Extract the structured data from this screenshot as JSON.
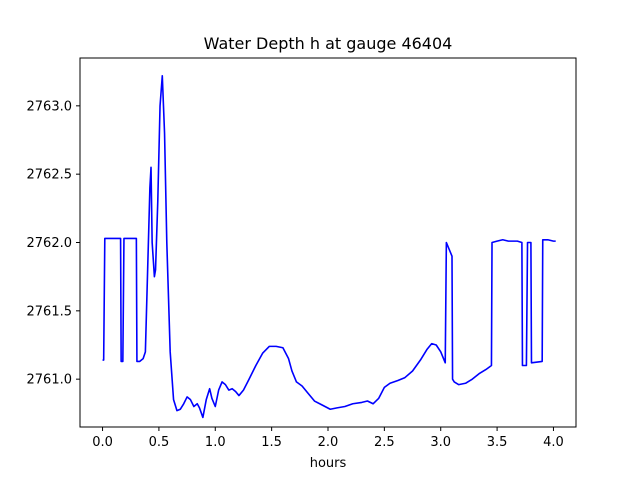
{
  "chart_data": {
    "type": "line",
    "title": "Water Depth h at gauge 46404",
    "xlabel": "hours",
    "ylabel": "",
    "xlim": [
      -0.2,
      4.2
    ],
    "ylim": [
      2760.65,
      2763.35
    ],
    "xticks": [
      0.0,
      0.5,
      1.0,
      1.5,
      2.0,
      2.5,
      3.0,
      3.5,
      4.0
    ],
    "xtick_labels": [
      "0.0",
      "0.5",
      "1.0",
      "1.5",
      "2.0",
      "2.5",
      "3.0",
      "3.5",
      "4.0"
    ],
    "yticks": [
      2761.0,
      2761.5,
      2762.0,
      2762.5,
      2763.0
    ],
    "ytick_labels": [
      "2761.0",
      "2761.5",
      "2762.0",
      "2762.5",
      "2763.0"
    ],
    "grid": false,
    "legend": "none",
    "series": [
      {
        "color": "#0000ff",
        "x": [
          0.0,
          0.01,
          0.02,
          0.1,
          0.16,
          0.165,
          0.18,
          0.19,
          0.2,
          0.3,
          0.305,
          0.33,
          0.36,
          0.38,
          0.4,
          0.42,
          0.43,
          0.44,
          0.46,
          0.47,
          0.49,
          0.51,
          0.53,
          0.55,
          0.57,
          0.6,
          0.63,
          0.66,
          0.69,
          0.72,
          0.75,
          0.78,
          0.81,
          0.84,
          0.86,
          0.89,
          0.92,
          0.95,
          0.97,
          1.0,
          1.03,
          1.06,
          1.09,
          1.12,
          1.15,
          1.18,
          1.21,
          1.25,
          1.3,
          1.36,
          1.42,
          1.48,
          1.54,
          1.6,
          1.65,
          1.68,
          1.72,
          1.77,
          1.82,
          1.88,
          1.95,
          2.02,
          2.08,
          2.15,
          2.22,
          2.3,
          2.35,
          2.4,
          2.45,
          2.5,
          2.55,
          2.62,
          2.68,
          2.75,
          2.82,
          2.88,
          2.92,
          2.96,
          3.0,
          3.04,
          3.05,
          3.1,
          3.105,
          3.12,
          3.16,
          3.22,
          3.28,
          3.34,
          3.4,
          3.45,
          3.455,
          3.5,
          3.55,
          3.6,
          3.68,
          3.72,
          3.725,
          3.76,
          3.77,
          3.8,
          3.805,
          3.9,
          3.905,
          3.95,
          4.0,
          4.02
        ],
        "y": [
          2761.14,
          2761.14,
          2762.03,
          2762.03,
          2762.03,
          2761.13,
          2761.13,
          2762.03,
          2762.03,
          2762.03,
          2761.13,
          2761.13,
          2761.15,
          2761.2,
          2761.8,
          2762.4,
          2762.55,
          2762.0,
          2761.75,
          2761.8,
          2762.3,
          2763.0,
          2763.22,
          2762.8,
          2762.0,
          2761.2,
          2760.85,
          2760.77,
          2760.78,
          2760.82,
          2760.87,
          2760.85,
          2760.8,
          2760.82,
          2760.79,
          2760.72,
          2760.85,
          2760.93,
          2760.86,
          2760.8,
          2760.92,
          2760.98,
          2760.96,
          2760.92,
          2760.93,
          2760.91,
          2760.88,
          2760.92,
          2761.0,
          2761.1,
          2761.19,
          2761.24,
          2761.24,
          2761.23,
          2761.15,
          2761.06,
          2760.98,
          2760.95,
          2760.9,
          2760.84,
          2760.81,
          2760.78,
          2760.79,
          2760.8,
          2760.82,
          2760.83,
          2760.84,
          2760.82,
          2760.86,
          2760.94,
          2760.97,
          2760.99,
          2761.01,
          2761.06,
          2761.14,
          2761.22,
          2761.26,
          2761.25,
          2761.2,
          2761.12,
          2762.0,
          2761.9,
          2761.0,
          2760.98,
          2760.96,
          2760.97,
          2761.0,
          2761.04,
          2761.07,
          2761.1,
          2762.0,
          2762.01,
          2762.02,
          2762.01,
          2762.01,
          2762.0,
          2761.1,
          2761.1,
          2762.0,
          2762.0,
          2761.12,
          2761.13,
          2762.02,
          2762.02,
          2762.01,
          2762.01
        ]
      }
    ]
  }
}
